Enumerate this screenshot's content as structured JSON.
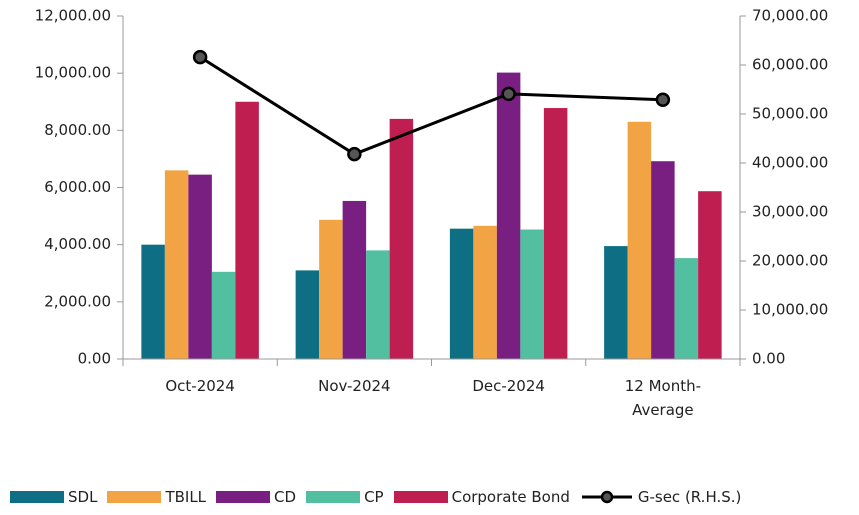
{
  "chart_data": {
    "type": "bar",
    "categories": [
      "Oct-2024",
      "Nov-2024",
      "Dec-2024",
      "12 Month-Average"
    ],
    "series": [
      {
        "name": "SDL",
        "color": "#0e6e84",
        "values": [
          4000,
          3100,
          4560,
          3950
        ]
      },
      {
        "name": "TBILL",
        "color": "#f2a444",
        "values": [
          6600,
          4870,
          4660,
          8300
        ]
      },
      {
        "name": "CD",
        "color": "#7a1f82",
        "values": [
          6450,
          5530,
          10020,
          6920
        ]
      },
      {
        "name": "CP",
        "color": "#52bfa0",
        "values": [
          3050,
          3800,
          4530,
          3530
        ]
      },
      {
        "name": "Corporate Bond",
        "color": "#bf1e51",
        "values": [
          9000,
          8400,
          8780,
          5870
        ]
      },
      {
        "name": "G-sec (R.H.S.)",
        "color": "#000000",
        "type": "line",
        "axis": "y2",
        "values": [
          61600,
          41800,
          54100,
          52900
        ]
      }
    ],
    "ylim": [
      0,
      12000
    ],
    "yticks": [
      {
        "value": 0,
        "label": "0.00"
      },
      {
        "value": 2000,
        "label": "2,000.00"
      },
      {
        "value": 4000,
        "label": "4,000.00"
      },
      {
        "value": 6000,
        "label": "6,000.00"
      },
      {
        "value": 8000,
        "label": "8,000.00"
      },
      {
        "value": 10000,
        "label": "10,000.00"
      },
      {
        "value": 12000,
        "label": "12,000.00"
      }
    ],
    "y2lim": [
      0,
      70000
    ],
    "y2ticks": [
      {
        "value": 0,
        "label": "0.00"
      },
      {
        "value": 10000,
        "label": "10,000.00"
      },
      {
        "value": 20000,
        "label": "20,000.00"
      },
      {
        "value": 30000,
        "label": "30,000.00"
      },
      {
        "value": 40000,
        "label": "40,000.00"
      },
      {
        "value": 50000,
        "label": "50,000.00"
      },
      {
        "value": 60000,
        "label": "60,000.00"
      },
      {
        "value": 70000,
        "label": "70,000.00"
      }
    ],
    "grid": false,
    "legend": "bottom"
  }
}
